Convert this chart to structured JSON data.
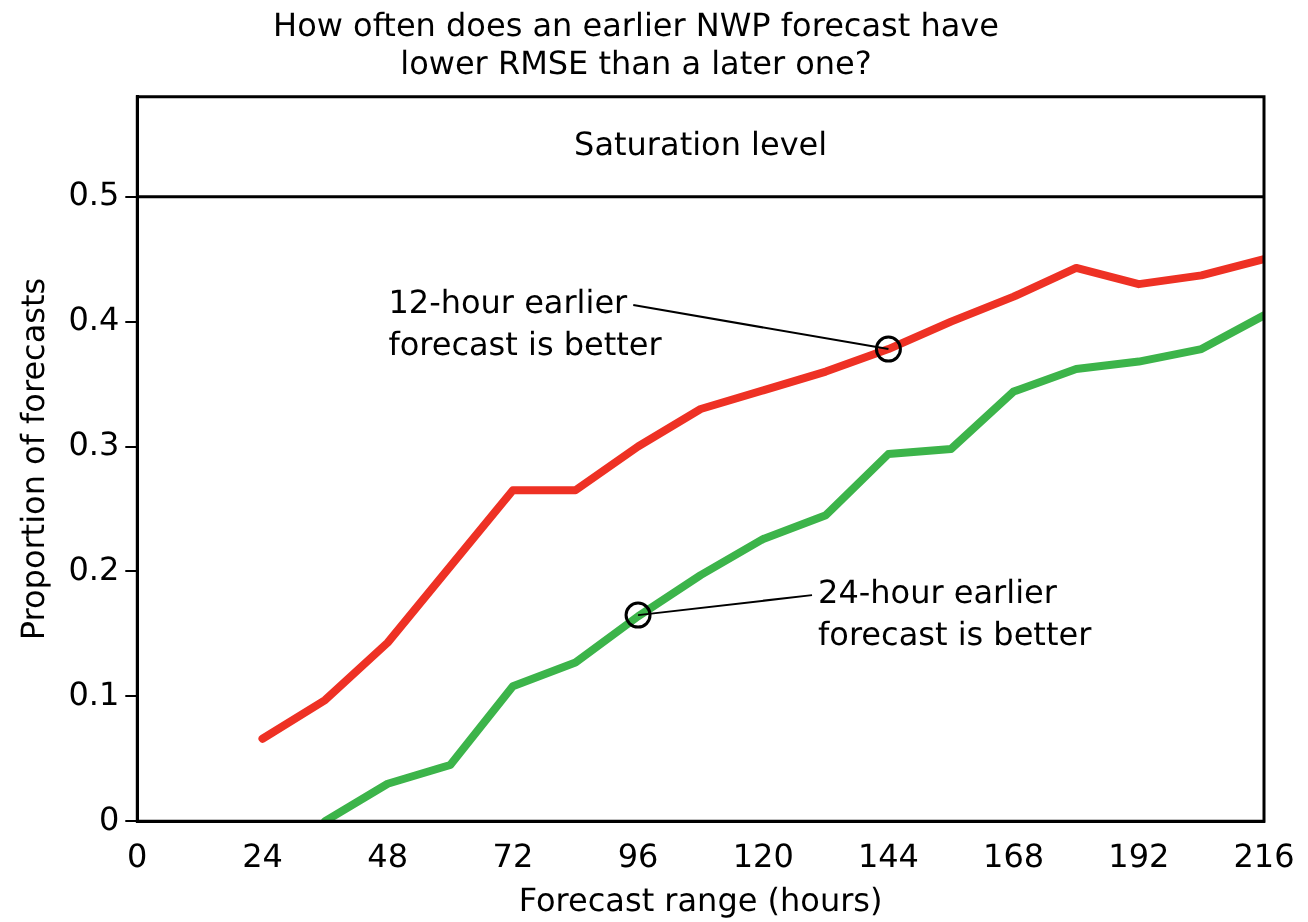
{
  "chart_data": {
    "type": "line",
    "title": "How often does an earlier NWP forecast have\nlower RMSE than a later one?",
    "xlabel": "Forecast range (hours)",
    "ylabel": "Proportion of forecasts",
    "xlim": [
      0,
      216
    ],
    "xticks": [
      0,
      24,
      48,
      72,
      96,
      120,
      144,
      168,
      192,
      216
    ],
    "ylim": [
      0,
      0.58
    ],
    "yticks": [
      0,
      0.1,
      0.2,
      0.3,
      0.4,
      0.5
    ],
    "series": [
      {
        "color": "#ee3124",
        "x": [
          24,
          36,
          48,
          72,
          84,
          96,
          108,
          120,
          132,
          144,
          156,
          168,
          180,
          192,
          204,
          216
        ],
        "values": [
          0.066,
          0.097,
          0.143,
          0.265,
          0.265,
          0.3,
          0.33,
          0.345,
          0.36,
          0.378,
          0.4,
          0.42,
          0.443,
          0.43,
          0.437,
          0.45
        ]
      },
      {
        "color": "#3cb44a",
        "x": [
          36,
          48,
          60,
          72,
          84,
          96,
          108,
          120,
          132,
          144,
          156,
          168,
          180,
          192,
          204,
          216
        ],
        "values": [
          0,
          0.03,
          0.045,
          0.108,
          0.127,
          0.164,
          0.197,
          0.226,
          0.245,
          0.294,
          0.298,
          0.344,
          0.362,
          0.368,
          0.378,
          0.405
        ]
      }
    ],
    "ref_lines": [
      {
        "axis": "y",
        "value": 0.5,
        "label": "Saturation level",
        "color": "#000000"
      }
    ],
    "annotations": [
      {
        "text": "12-hour earlier\nforecast is better",
        "x": 144,
        "y": 0.378
      },
      {
        "text": "24-hour earlier\nforecast is better",
        "x": 96,
        "y": 0.165
      }
    ],
    "grid": false,
    "legend": false,
    "marker": "none",
    "line_style": "solid"
  }
}
